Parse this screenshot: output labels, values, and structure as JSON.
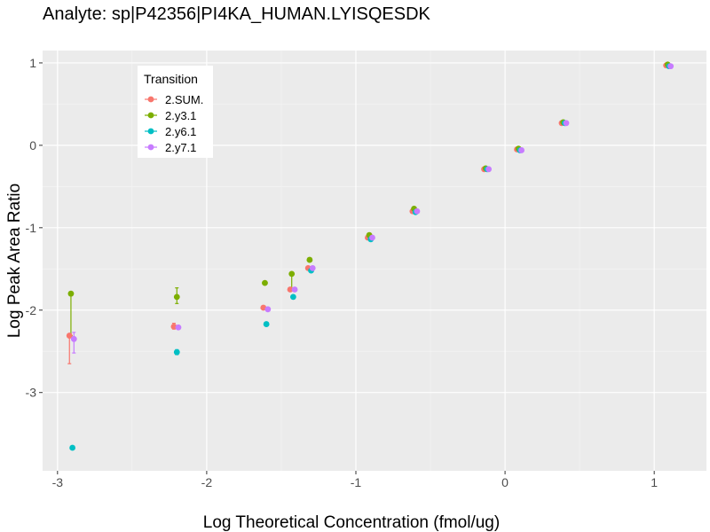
{
  "chart_data": {
    "type": "scatter",
    "title": "Analyte: sp|P42356|PI4KA_HUMAN.LYISQESDK",
    "xlabel": "Log Theoretical Concentration (fmol/ug)",
    "ylabel": "Log Peak Area Ratio",
    "xlim": [
      -3.1,
      1.35
    ],
    "ylim": [
      -3.95,
      1.15
    ],
    "x_ticks": [
      -3,
      -2,
      -1,
      0,
      1
    ],
    "y_ticks": [
      -3,
      -2,
      -1,
      0,
      1
    ],
    "x_tick_labels": [
      "-3",
      "-2",
      "-1",
      "0",
      "1"
    ],
    "y_tick_labels": [
      "-3",
      "-2",
      "-1",
      "0",
      "1"
    ],
    "grid": true,
    "legend": {
      "title": "Transition",
      "position": "top-left"
    },
    "series": [
      {
        "name": "2.SUM.",
        "color": "#F8766D",
        "points": [
          {
            "x": -2.92,
            "y": -2.31,
            "ymin": -2.65,
            "ymax": -2.29
          },
          {
            "x": -2.22,
            "y": -2.2,
            "ymin": -2.23,
            "ymax": -2.16
          },
          {
            "x": -1.62,
            "y": -1.97
          },
          {
            "x": -1.44,
            "y": -1.75,
            "ymin": -1.76,
            "ymax": -1.74
          },
          {
            "x": -1.32,
            "y": -1.49
          },
          {
            "x": -0.92,
            "y": -1.12
          },
          {
            "x": -0.62,
            "y": -0.8
          },
          {
            "x": -0.14,
            "y": -0.29
          },
          {
            "x": 0.08,
            "y": -0.05
          },
          {
            "x": 0.38,
            "y": 0.27
          },
          {
            "x": 1.08,
            "y": 0.97
          }
        ]
      },
      {
        "name": "2.y3.1",
        "color": "#7CAE00",
        "points": [
          {
            "x": -2.91,
            "y": -1.8,
            "ymin": -2.31,
            "ymax": -1.78
          },
          {
            "x": -2.2,
            "y": -1.84,
            "ymin": -1.92,
            "ymax": -1.73
          },
          {
            "x": -1.61,
            "y": -1.67
          },
          {
            "x": -1.43,
            "y": -1.56,
            "ymin": -1.75,
            "ymax": -1.55
          },
          {
            "x": -1.31,
            "y": -1.39
          },
          {
            "x": -0.91,
            "y": -1.09
          },
          {
            "x": -0.61,
            "y": -0.77
          },
          {
            "x": -0.13,
            "y": -0.28
          },
          {
            "x": 0.09,
            "y": -0.04
          },
          {
            "x": 0.39,
            "y": 0.28
          },
          {
            "x": 1.09,
            "y": 0.98
          }
        ]
      },
      {
        "name": "2.y6.1",
        "color": "#00BFC4",
        "points": [
          {
            "x": -2.9,
            "y": -3.67
          },
          {
            "x": -2.2,
            "y": -2.51,
            "ymin": -2.54,
            "ymax": -2.48
          },
          {
            "x": -1.6,
            "y": -2.17,
            "ymin": -2.19,
            "ymax": -2.15
          },
          {
            "x": -1.42,
            "y": -1.84
          },
          {
            "x": -1.3,
            "y": -1.52
          },
          {
            "x": -0.9,
            "y": -1.14
          },
          {
            "x": -0.6,
            "y": -0.81
          },
          {
            "x": -0.12,
            "y": -0.29
          },
          {
            "x": 0.1,
            "y": -0.06
          },
          {
            "x": 0.4,
            "y": 0.27
          },
          {
            "x": 1.1,
            "y": 0.96
          }
        ]
      },
      {
        "name": "2.y7.1",
        "color": "#C77CFF",
        "points": [
          {
            "x": -2.89,
            "y": -2.35,
            "ymin": -2.52,
            "ymax": -2.27
          },
          {
            "x": -2.19,
            "y": -2.21
          },
          {
            "x": -1.59,
            "y": -1.99
          },
          {
            "x": -1.41,
            "y": -1.75
          },
          {
            "x": -1.29,
            "y": -1.49
          },
          {
            "x": -0.89,
            "y": -1.12
          },
          {
            "x": -0.59,
            "y": -0.8
          },
          {
            "x": -0.11,
            "y": -0.29
          },
          {
            "x": 0.11,
            "y": -0.06
          },
          {
            "x": 0.41,
            "y": 0.27
          },
          {
            "x": 1.11,
            "y": 0.96
          }
        ]
      }
    ]
  }
}
